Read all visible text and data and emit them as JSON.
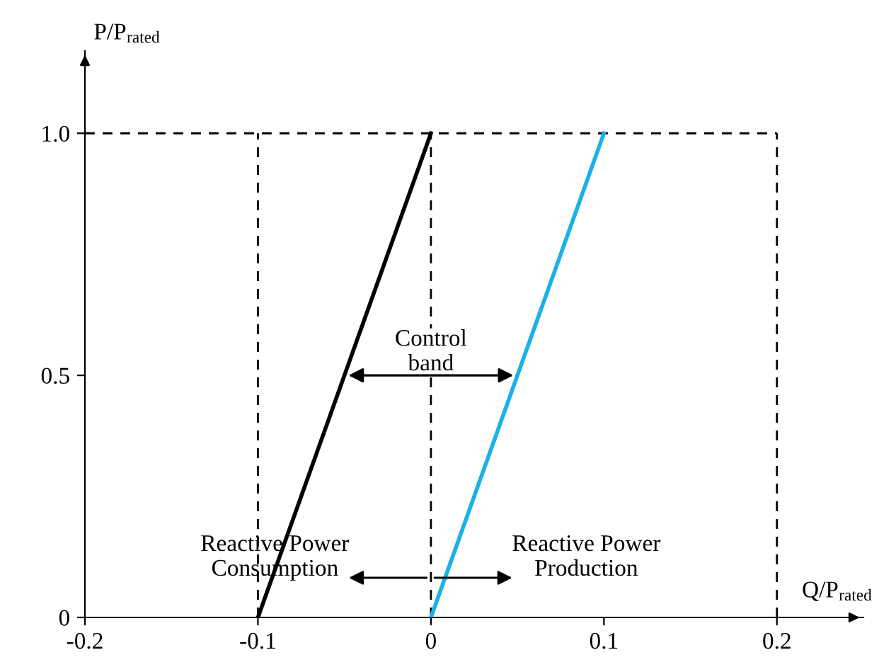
{
  "chart_data": {
    "type": "line",
    "xlabel": "Q/P$_{rated}$",
    "ylabel": "P/P$_{rated}$",
    "series": [
      {
        "color": "#000000",
        "x": [
          -0.1,
          0
        ],
        "values": [
          0,
          1.0
        ]
      },
      {
        "color": "#1ab0e8",
        "x": [
          0,
          0.1
        ],
        "values": [
          0,
          1.0
        ]
      }
    ],
    "xlim": [
      -0.2,
      0.25
    ],
    "ylim": [
      0,
      1.17
    ],
    "xticks": [
      -0.2,
      -0.1,
      0,
      0.1,
      0.2
    ],
    "yticks": [
      0,
      0.5,
      {
        "value": 1.0,
        "label": "1.0"
      }
    ],
    "ref_lines": [
      {
        "axis": "x",
        "value": -0.1,
        "color": "#000000",
        "line_style": "dashed"
      },
      {
        "axis": "x",
        "value": 0,
        "color": "#000000",
        "line_style": "dashed"
      },
      {
        "axis": "x",
        "value": 0.2,
        "color": "#000000",
        "line_style": "dashed"
      },
      {
        "axis": "y",
        "value": 1.0,
        "color": "#000000",
        "line_style": "dashed"
      }
    ],
    "annotations": [
      {
        "text": "Control\nband",
        "x": 0,
        "y": 0.5
      },
      "Reactive Power\nConsumption",
      "Reactive Power\nProduction"
    ],
    "grid": false,
    "legend": false,
    "marker": "none",
    "line_style": "solid"
  }
}
